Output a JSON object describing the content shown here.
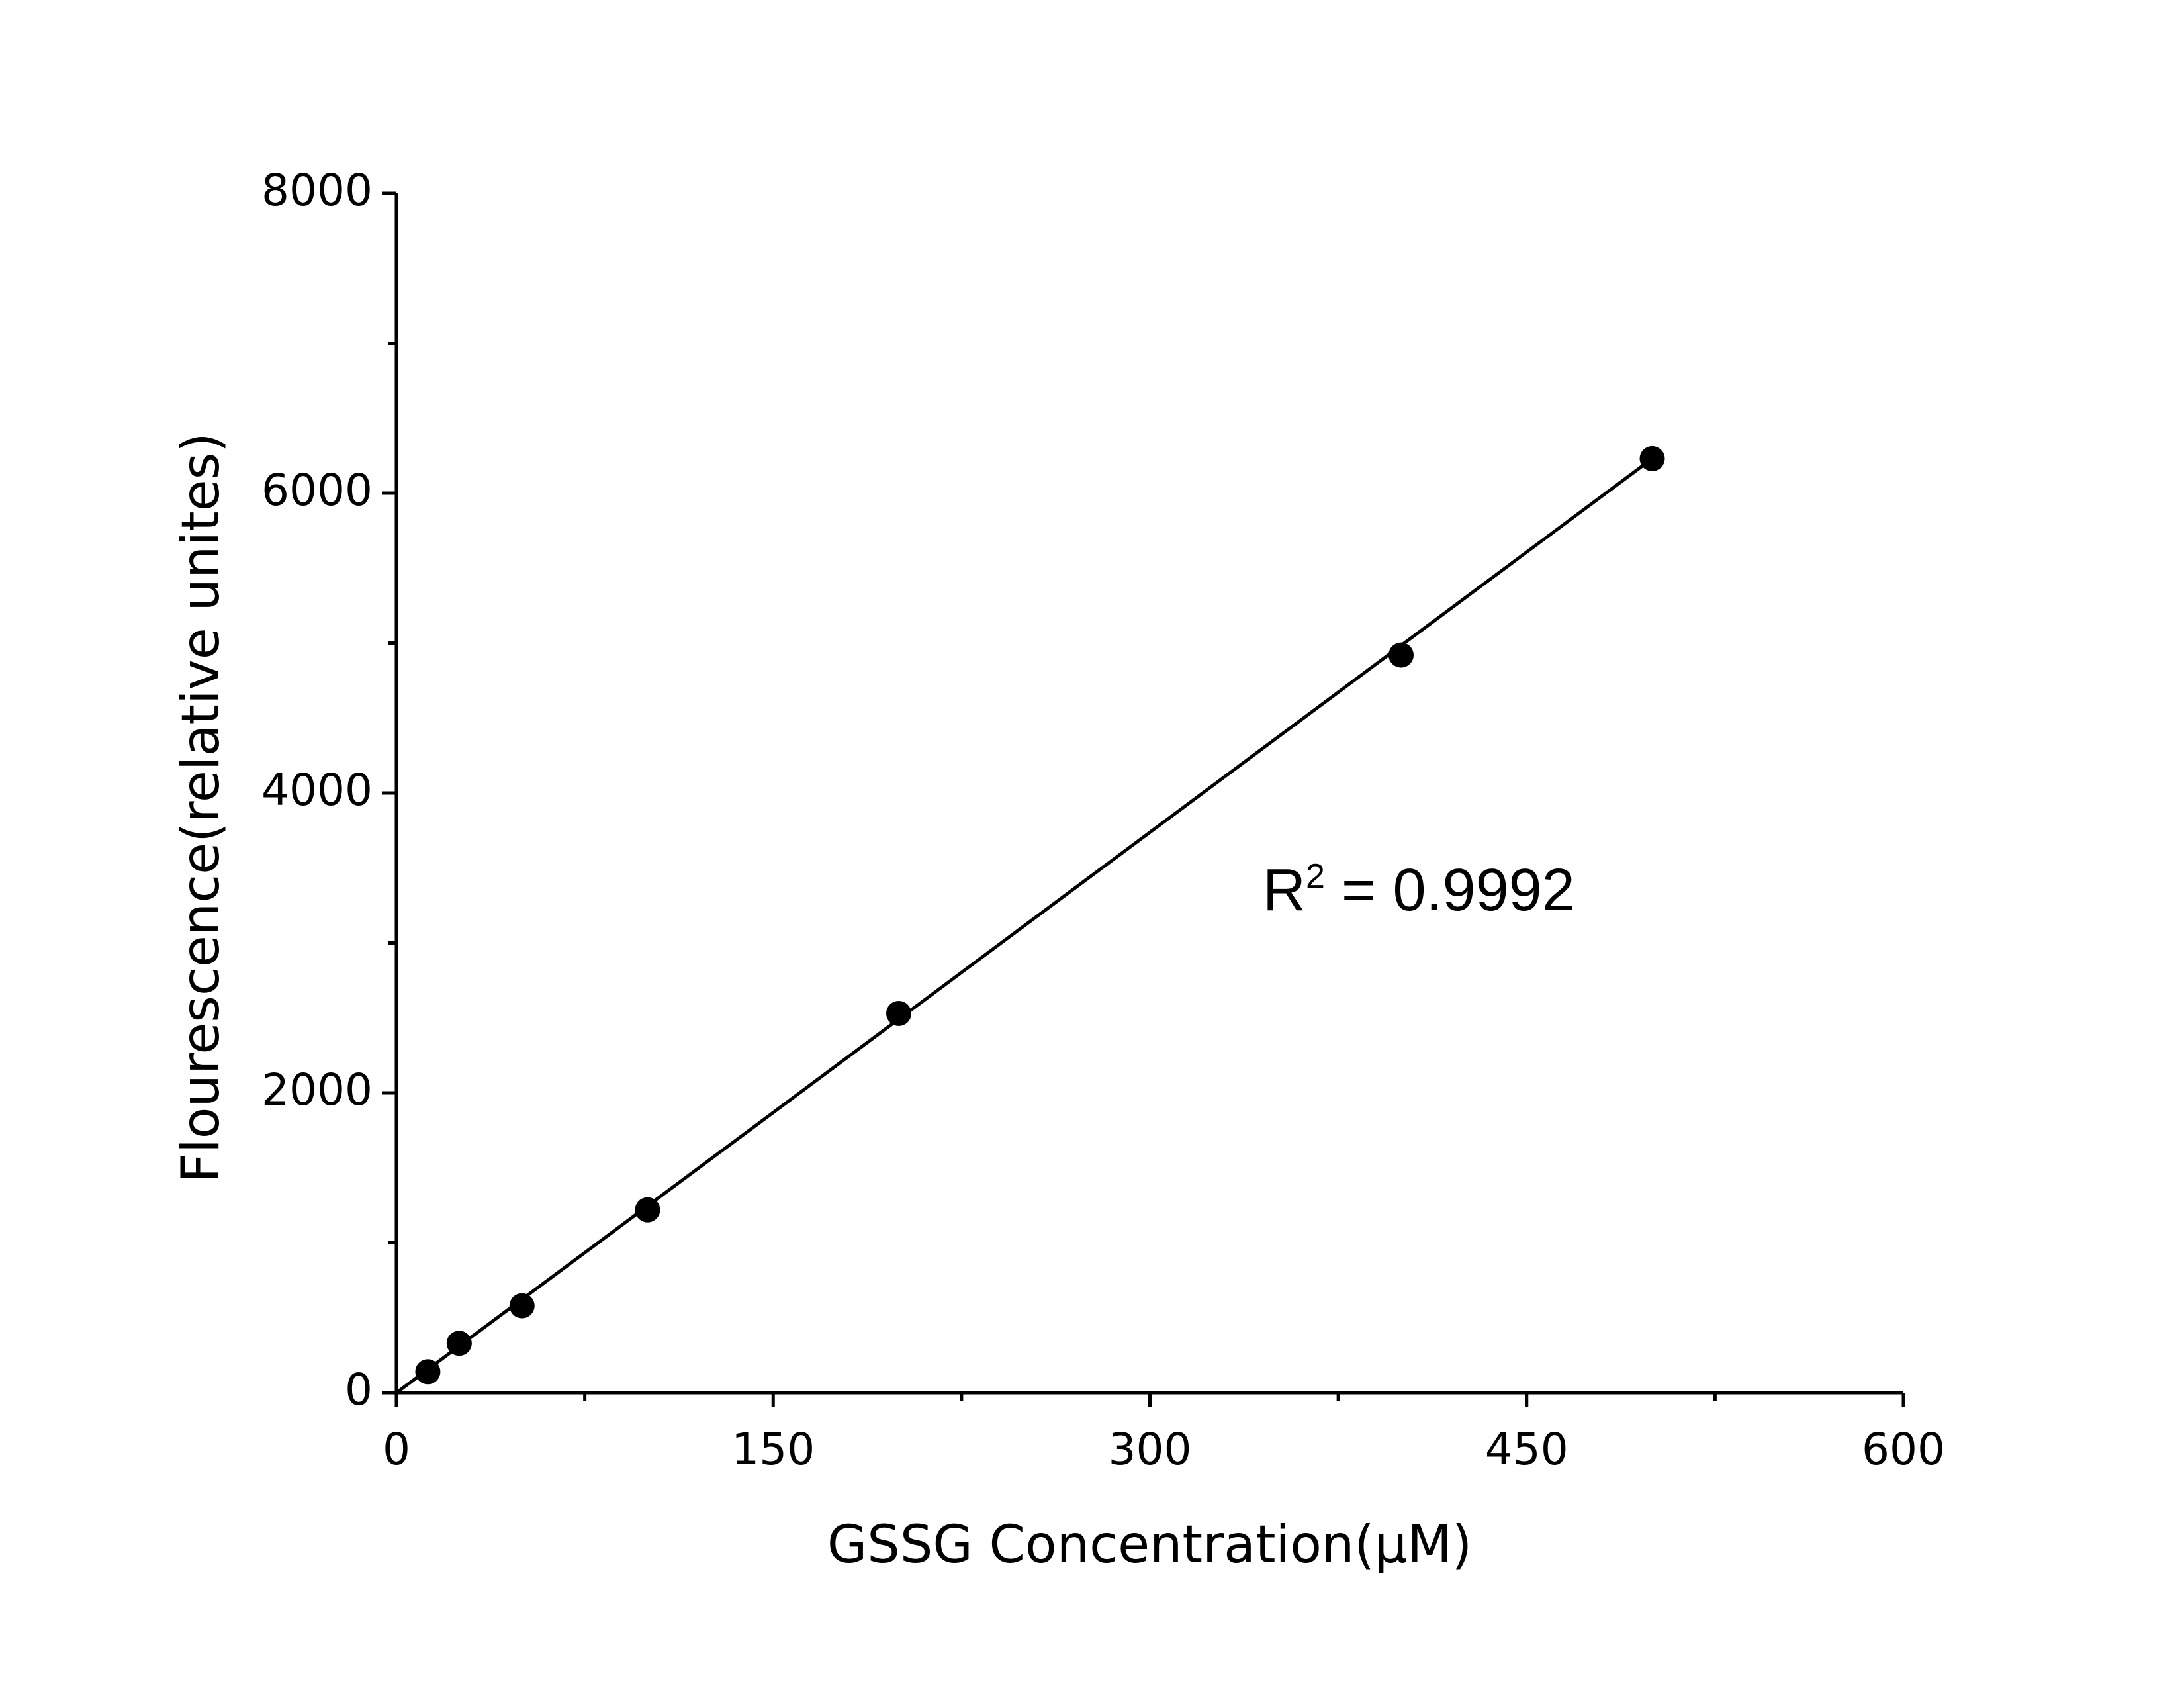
{
  "chart_data": {
    "type": "scatter",
    "x_label": "GSSG Concentration(μM)",
    "y_label": "Flourescence(relative unites)",
    "x": [
      12.5,
      25,
      50,
      100,
      200,
      400,
      500
    ],
    "values": [
      140,
      330,
      580,
      1220,
      2530,
      4920,
      6230
    ],
    "color": "#000000",
    "fit": {
      "x": [
        0,
        500
      ],
      "values": [
        0,
        6230
      ]
    },
    "annotation": {
      "base": "R",
      "sup": "2",
      "text": " = 0.9992"
    },
    "xlim": [
      0,
      600
    ],
    "xticks": [
      0,
      150,
      300,
      450,
      600
    ],
    "xminorticks": [
      75,
      225,
      375,
      525
    ],
    "ylim": [
      0,
      8000
    ],
    "yticks": [
      0,
      2000,
      4000,
      6000,
      8000
    ],
    "yminorticks": [
      1000,
      3000,
      5000,
      7000
    ],
    "grid": false
  }
}
